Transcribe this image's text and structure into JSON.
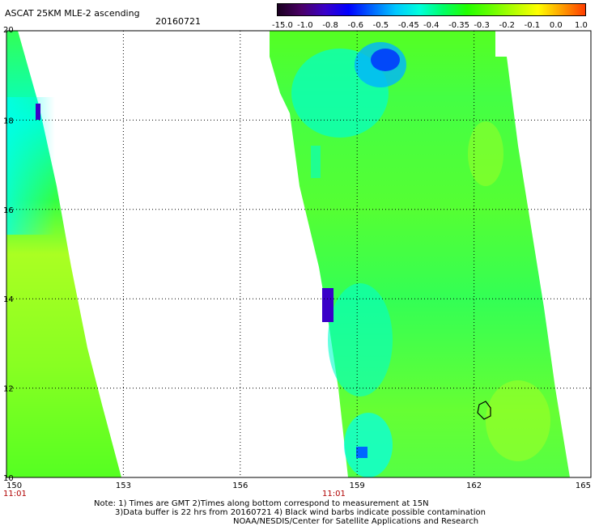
{
  "title": "ASCAT 25KM MLE-2 ascending",
  "date": "20160721",
  "colorbar": {
    "labels": [
      "-15.0",
      "-1.0",
      "-0.8",
      "-0.6",
      "-0.5",
      "-0.45",
      "-0.4",
      "-0.35",
      "-0.3",
      "-0.2",
      "-0.1",
      "0.0",
      "1.0"
    ],
    "colors": [
      "#1a0020",
      "#4a0066",
      "#3a00c8",
      "#0000ff",
      "#0066ff",
      "#00c8ff",
      "#00ffdc",
      "#00ff66",
      "#22ff00",
      "#66ff00",
      "#b4ff00",
      "#ffff00",
      "#ffa000",
      "#ff3c00"
    ]
  },
  "map": {
    "lon_ticks": [
      "150",
      "153",
      "156",
      "159",
      "162",
      "165"
    ],
    "lat_ticks": [
      "10",
      "12",
      "14",
      "16",
      "18",
      "20"
    ],
    "lon_range": [
      150,
      165
    ],
    "lat_range": [
      10,
      20
    ],
    "time_labels": [
      "11:01",
      "11:01"
    ]
  },
  "notes": {
    "line1": "Note: 1) Times are GMT 2)Times along bottom correspond to measurement at 15N",
    "line2": "3)Data buffer is 22 hrs from 20160721 4) Black wind barbs indicate possible contamination",
    "line3": "NOAA/NESDIS/Center for Satellite Applications and Research"
  }
}
